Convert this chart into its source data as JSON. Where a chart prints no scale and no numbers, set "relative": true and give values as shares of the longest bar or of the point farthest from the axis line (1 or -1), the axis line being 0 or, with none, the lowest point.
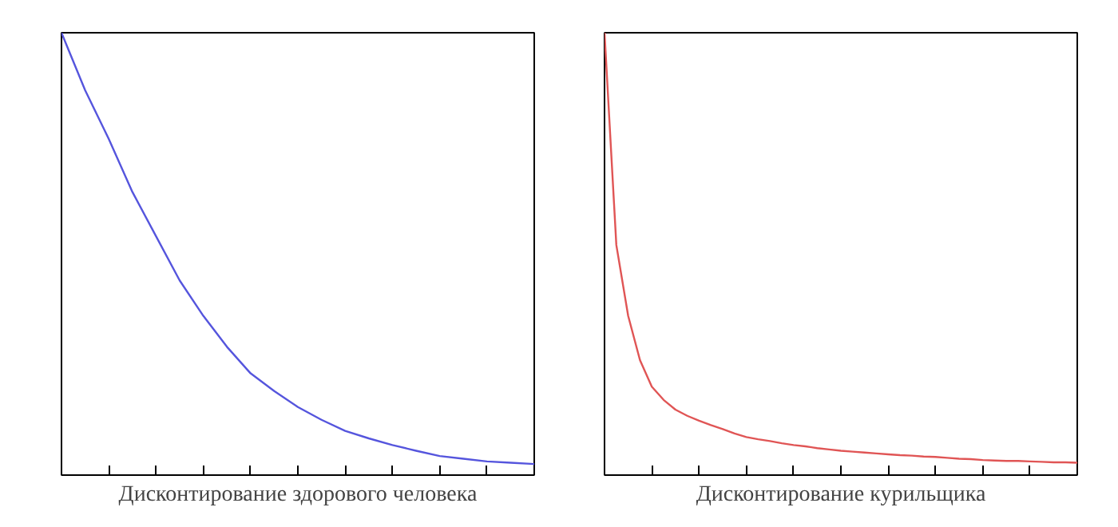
{
  "chart_data": [
    {
      "type": "line",
      "relative": true,
      "xlabel": "Дисконтирование здорового человека",
      "categories": [
        null,
        null,
        null,
        null,
        null,
        null,
        null,
        null,
        null,
        null,
        null,
        null,
        null,
        null,
        null,
        null,
        null,
        null,
        null,
        null,
        null
      ],
      "grid": false,
      "line_style": "solid",
      "series": [
        {
          "color": "#5555dd",
          "values": [
            1.0,
            0.87,
            0.76,
            0.64,
            0.54,
            0.44,
            0.36,
            0.29,
            0.23,
            0.19,
            0.154,
            0.125,
            0.1,
            0.083,
            0.068,
            0.055,
            0.043,
            0.037,
            0.031,
            0.028,
            0.025
          ]
        }
      ]
    },
    {
      "type": "line",
      "relative": true,
      "xlabel": "Дисконтирование курильщика",
      "categories": [
        null,
        null,
        null,
        null,
        null,
        null,
        null,
        null,
        null,
        null,
        null,
        null,
        null,
        null,
        null,
        null,
        null,
        null,
        null,
        null,
        null,
        null,
        null,
        null,
        null,
        null,
        null,
        null,
        null,
        null,
        null,
        null,
        null,
        null,
        null,
        null,
        null,
        null,
        null,
        null,
        null
      ],
      "grid": false,
      "line_style": "solid",
      "series": [
        {
          "color": "#e05555",
          "values": [
            1.0,
            0.52,
            0.36,
            0.26,
            0.2,
            0.17,
            0.148,
            0.134,
            0.123,
            0.113,
            0.104,
            0.094,
            0.086,
            0.081,
            0.077,
            0.072,
            0.068,
            0.065,
            0.061,
            0.058,
            0.055,
            0.053,
            0.051,
            0.049,
            0.047,
            0.045,
            0.044,
            0.042,
            0.041,
            0.039,
            0.037,
            0.036,
            0.034,
            0.033,
            0.032,
            0.032,
            0.031,
            0.03,
            0.029,
            0.029,
            0.028
          ]
        }
      ]
    }
  ]
}
